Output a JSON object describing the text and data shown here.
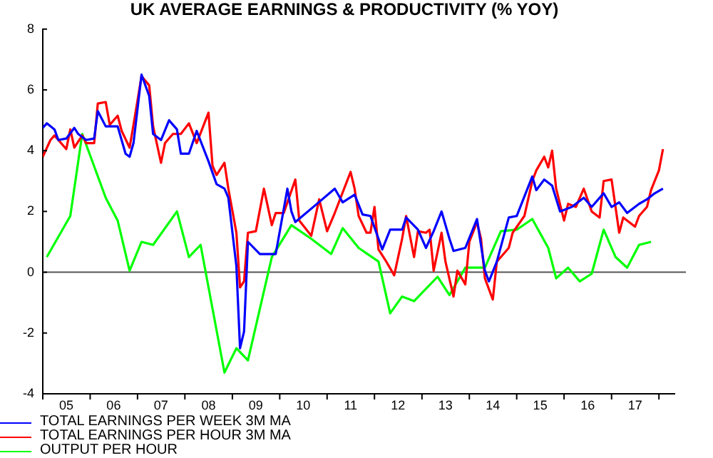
{
  "chart_data": {
    "type": "line",
    "title": "UK AVERAGE EARNINGS & PRODUCTIVITY (% YOY)",
    "xlim": [
      "2005-01",
      "2018-05"
    ],
    "xticks": [
      {
        "value": "2005",
        "label": null
      },
      {
        "value": "2005-07",
        "label": "05"
      },
      {
        "value": "2006",
        "label": null
      },
      {
        "value": "2006-07",
        "label": "06"
      },
      {
        "value": "2007",
        "label": null
      },
      {
        "value": "2007-07",
        "label": "07"
      },
      {
        "value": "2008",
        "label": null
      },
      {
        "value": "2008-07",
        "label": "08"
      },
      {
        "value": "2009",
        "label": null
      },
      {
        "value": "2009-07",
        "label": "09"
      },
      {
        "value": "2010",
        "label": null
      },
      {
        "value": "2010-07",
        "label": "10"
      },
      {
        "value": "2011",
        "label": null
      },
      {
        "value": "2011-07",
        "label": "11"
      },
      {
        "value": "2012",
        "label": null
      },
      {
        "value": "2012-07",
        "label": "12"
      },
      {
        "value": "2013",
        "label": null
      },
      {
        "value": "2013-07",
        "label": "13"
      },
      {
        "value": "2014",
        "label": null
      },
      {
        "value": "2014-07",
        "label": "14"
      },
      {
        "value": "2015",
        "label": null
      },
      {
        "value": "2015-07",
        "label": "15"
      },
      {
        "value": "2016",
        "label": null
      },
      {
        "value": "2016-07",
        "label": "16"
      },
      {
        "value": "2017",
        "label": null
      },
      {
        "value": "2017-07",
        "label": "17"
      },
      {
        "value": "2018",
        "label": null
      }
    ],
    "ylim": [
      -4,
      8
    ],
    "yticks": [
      -4,
      -2,
      0,
      2,
      4,
      6,
      8
    ],
    "grid": false,
    "legend": "bottom left",
    "marker": "none",
    "ref_lines": [
      {
        "axis": "y",
        "value": 0,
        "label": null,
        "color": "#555555"
      }
    ],
    "series": [
      {
        "name": "TOTAL EARNINGS PER WEEK 3M MA",
        "color": "#0000ff",
        "x": [
          "2005-01",
          "2005-02",
          "2005-04",
          "2005-05",
          "2005-07",
          "2005-09",
          "2005-10",
          "2005-12",
          "2006-02",
          "2006-03",
          "2006-05",
          "2006-08",
          "2006-10",
          "2006-11",
          "2006-12",
          "2007-02",
          "2007-04",
          "2007-05",
          "2007-07",
          "2007-09",
          "2007-11",
          "2007-12",
          "2008-02",
          "2008-04",
          "2008-07",
          "2008-09",
          "2008-11",
          "2008-12",
          "2009-02",
          "2009-03",
          "2009-04",
          "2009-05",
          "2009-08",
          "2009-12",
          "2010-03",
          "2010-04",
          "2010-05",
          "2010-10",
          "2011-03",
          "2011-05",
          "2011-08",
          "2011-10",
          "2011-12",
          "2012-03",
          "2012-05",
          "2012-08",
          "2012-09",
          "2012-12",
          "2013-02",
          "2013-04",
          "2013-06",
          "2013-08",
          "2013-09",
          "2013-12",
          "2014-03",
          "2014-05",
          "2014-06",
          "2014-08",
          "2014-11",
          "2015-01",
          "2015-05",
          "2015-06",
          "2015-08",
          "2015-10",
          "2015-12",
          "2016-03",
          "2016-06",
          "2016-08",
          "2016-11",
          "2017-01",
          "2017-03",
          "2017-05",
          "2017-08",
          "2017-10",
          "2017-12",
          "2018-02"
        ],
        "values": [
          4.75,
          4.9,
          4.7,
          4.35,
          4.4,
          4.75,
          4.55,
          4.35,
          4.4,
          5.3,
          4.8,
          4.8,
          3.9,
          3.8,
          4.25,
          6.5,
          5.8,
          4.55,
          4.35,
          5.0,
          4.7,
          3.9,
          3.9,
          4.65,
          3.65,
          2.9,
          2.75,
          2.45,
          0.2,
          -2.5,
          -1.95,
          1.0,
          0.6,
          0.6,
          2.75,
          2.0,
          1.65,
          2.2,
          2.75,
          2.3,
          2.55,
          1.9,
          1.85,
          0.75,
          1.4,
          1.4,
          1.8,
          1.4,
          0.8,
          1.35,
          2.0,
          1.1,
          0.7,
          0.8,
          1.75,
          0.05,
          -0.3,
          0.35,
          1.8,
          1.85,
          3.15,
          2.7,
          3.05,
          2.85,
          2.0,
          2.15,
          2.45,
          2.15,
          2.6,
          2.15,
          2.3,
          1.95,
          2.25,
          2.4,
          2.6,
          2.75
        ]
      },
      {
        "name": "TOTAL EARNINGS PER HOUR 3M MA",
        "color": "#ff0000",
        "x": [
          "2005-01",
          "2005-03",
          "2005-04",
          "2005-07",
          "2005-08",
          "2005-09",
          "2005-11",
          "2005-12",
          "2006-02",
          "2006-03",
          "2006-05",
          "2006-06",
          "2006-08",
          "2006-09",
          "2006-11",
          "2006-12",
          "2007-02",
          "2007-04",
          "2007-05",
          "2007-07",
          "2007-08",
          "2007-10",
          "2007-12",
          "2008-02",
          "2008-04",
          "2008-07",
          "2008-08",
          "2008-09",
          "2008-11",
          "2008-12",
          "2009-02",
          "2009-03",
          "2009-04",
          "2009-05",
          "2009-07",
          "2009-09",
          "2009-11",
          "2009-12",
          "2010-02",
          "2010-05",
          "2010-06",
          "2010-09",
          "2010-11",
          "2011-01",
          "2011-03",
          "2011-07",
          "2011-08",
          "2011-09",
          "2011-11",
          "2011-12",
          "2012-01",
          "2012-02",
          "2012-04",
          "2012-06",
          "2012-08",
          "2012-09",
          "2012-11",
          "2012-12",
          "2013-02",
          "2013-03",
          "2013-04",
          "2013-06",
          "2013-07",
          "2013-09",
          "2013-10",
          "2013-12",
          "2014-01",
          "2014-03",
          "2014-04",
          "2014-05",
          "2014-07",
          "2014-08",
          "2014-11",
          "2014-12",
          "2015-03",
          "2015-05",
          "2015-06",
          "2015-08",
          "2015-09",
          "2015-10",
          "2015-11",
          "2016-01",
          "2016-02",
          "2016-04",
          "2016-06",
          "2016-08",
          "2016-10",
          "2016-11",
          "2017-01",
          "2017-03",
          "2017-04",
          "2017-07",
          "2017-08",
          "2017-10",
          "2017-11",
          "2018-01",
          "2018-02"
        ],
        "values": [
          3.8,
          4.35,
          4.5,
          4.05,
          4.7,
          4.1,
          4.5,
          4.25,
          4.25,
          5.55,
          5.6,
          4.85,
          5.15,
          4.65,
          4.1,
          4.85,
          6.45,
          6.15,
          4.8,
          3.6,
          4.25,
          4.55,
          4.55,
          4.9,
          4.25,
          5.25,
          3.5,
          3.2,
          3.6,
          2.75,
          1.3,
          -0.5,
          -0.3,
          1.3,
          1.35,
          2.75,
          1.55,
          1.95,
          1.95,
          3.05,
          1.7,
          1.2,
          2.4,
          1.35,
          1.95,
          3.3,
          2.75,
          1.85,
          1.3,
          1.3,
          2.15,
          0.75,
          0.35,
          -0.1,
          1.1,
          1.85,
          0.5,
          1.35,
          1.3,
          1.4,
          0.05,
          1.3,
          0.35,
          -0.8,
          0.05,
          -0.4,
          1.0,
          1.65,
          1.1,
          -0.2,
          -0.9,
          0.35,
          0.8,
          1.3,
          1.85,
          3.0,
          3.35,
          3.8,
          3.45,
          4.0,
          2.75,
          1.7,
          2.25,
          2.15,
          2.75,
          2.0,
          1.8,
          3.0,
          3.05,
          1.3,
          1.8,
          1.5,
          1.85,
          2.15,
          2.7,
          3.35,
          4.05
        ]
      },
      {
        "name": "OUTPUT PER HOUR",
        "color": "#00ff00",
        "x": [
          "2005-02",
          "2005-08",
          "2005-11",
          "2006-05",
          "2006-08",
          "2006-11",
          "2007-02",
          "2007-05",
          "2007-11",
          "2008-02",
          "2008-05",
          "2008-11",
          "2009-02",
          "2009-05",
          "2009-11",
          "2010-04",
          "2010-09",
          "2011-02",
          "2011-05",
          "2011-09",
          "2012-02",
          "2012-05",
          "2012-08",
          "2012-11",
          "2013-05",
          "2013-08",
          "2013-12",
          "2014-05",
          "2014-09",
          "2015-01",
          "2015-05",
          "2015-09",
          "2015-11",
          "2016-02",
          "2016-05",
          "2016-08",
          "2016-11",
          "2017-02",
          "2017-05",
          "2017-08",
          "2017-11"
        ],
        "values": [
          0.5,
          1.85,
          4.55,
          2.45,
          1.7,
          0.05,
          1.0,
          0.9,
          2.0,
          0.5,
          0.9,
          -3.3,
          -2.5,
          -2.9,
          0.5,
          1.55,
          1.1,
          0.6,
          1.45,
          0.8,
          0.35,
          -1.35,
          -0.8,
          -0.95,
          -0.15,
          -0.75,
          0.15,
          0.15,
          1.35,
          1.4,
          1.75,
          0.8,
          -0.2,
          0.15,
          -0.3,
          -0.05,
          1.4,
          0.5,
          0.15,
          0.9,
          1.0
        ]
      }
    ]
  }
}
